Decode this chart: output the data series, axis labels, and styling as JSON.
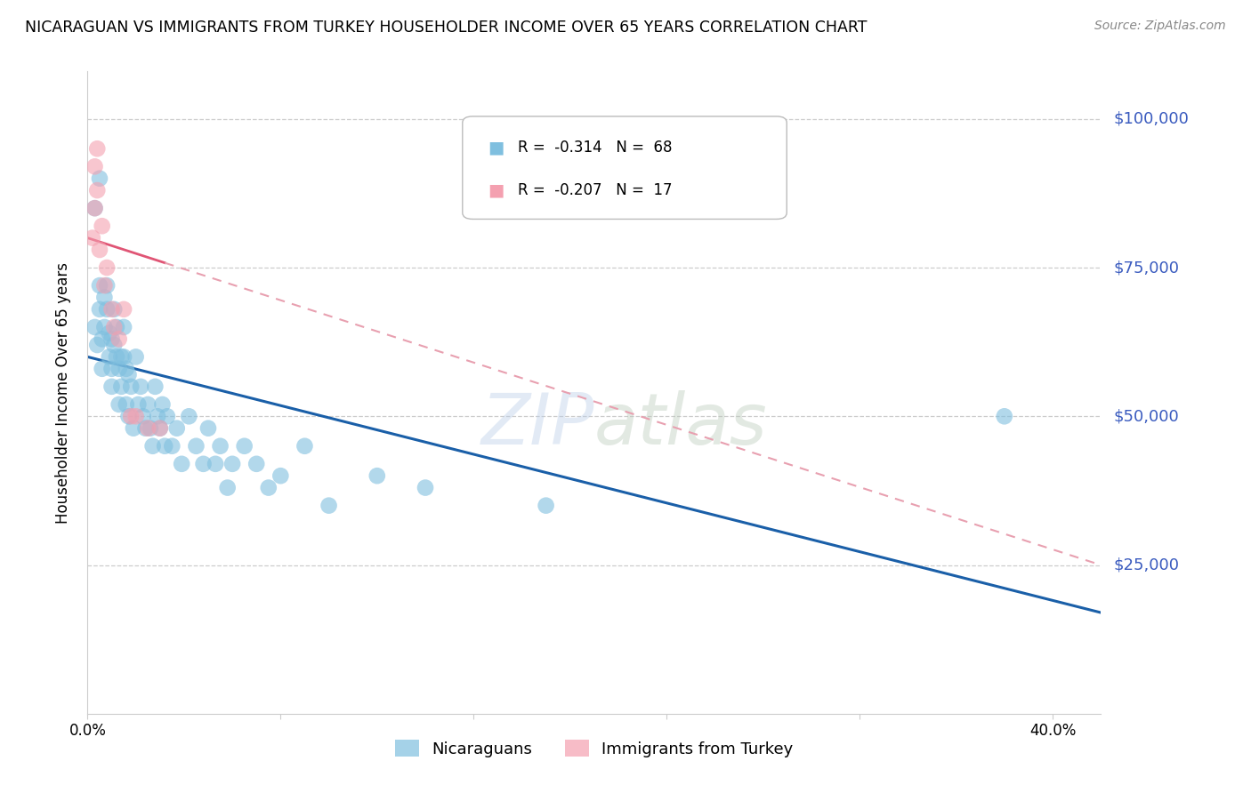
{
  "title": "NICARAGUAN VS IMMIGRANTS FROM TURKEY HOUSEHOLDER INCOME OVER 65 YEARS CORRELATION CHART",
  "source": "Source: ZipAtlas.com",
  "ylabel": "Householder Income Over 65 years",
  "legend_blue_r": "-0.314",
  "legend_blue_n": "68",
  "legend_pink_r": "-0.207",
  "legend_pink_n": "17",
  "y_tick_labels": [
    "$100,000",
    "$75,000",
    "$50,000",
    "$25,000"
  ],
  "y_tick_values": [
    100000,
    75000,
    50000,
    25000
  ],
  "ylim": [
    0,
    108000
  ],
  "xlim": [
    0.0,
    0.42
  ],
  "blue_color": "#7fbfdf",
  "pink_color": "#f4a0b0",
  "blue_line_color": "#1a5fa8",
  "pink_line_color": "#e05575",
  "pink_dash_color": "#e8a0b0",
  "grid_color": "#cccccc",
  "right_label_color": "#3a5bbf",
  "nicaraguans_x": [
    0.003,
    0.004,
    0.005,
    0.005,
    0.006,
    0.006,
    0.007,
    0.007,
    0.008,
    0.008,
    0.009,
    0.009,
    0.01,
    0.01,
    0.01,
    0.011,
    0.011,
    0.012,
    0.012,
    0.013,
    0.013,
    0.014,
    0.014,
    0.015,
    0.015,
    0.016,
    0.016,
    0.017,
    0.017,
    0.018,
    0.019,
    0.02,
    0.021,
    0.022,
    0.023,
    0.024,
    0.025,
    0.026,
    0.027,
    0.028,
    0.029,
    0.03,
    0.031,
    0.032,
    0.033,
    0.035,
    0.037,
    0.039,
    0.042,
    0.045,
    0.048,
    0.05,
    0.053,
    0.055,
    0.058,
    0.06,
    0.065,
    0.07,
    0.075,
    0.08,
    0.09,
    0.1,
    0.12,
    0.14,
    0.19,
    0.38,
    0.003,
    0.005
  ],
  "nicaraguans_y": [
    65000,
    62000,
    68000,
    72000,
    63000,
    58000,
    70000,
    65000,
    68000,
    72000,
    64000,
    60000,
    63000,
    58000,
    55000,
    68000,
    62000,
    60000,
    65000,
    58000,
    52000,
    60000,
    55000,
    65000,
    60000,
    58000,
    52000,
    57000,
    50000,
    55000,
    48000,
    60000,
    52000,
    55000,
    50000,
    48000,
    52000,
    48000,
    45000,
    55000,
    50000,
    48000,
    52000,
    45000,
    50000,
    45000,
    48000,
    42000,
    50000,
    45000,
    42000,
    48000,
    42000,
    45000,
    38000,
    42000,
    45000,
    42000,
    38000,
    40000,
    45000,
    35000,
    40000,
    38000,
    35000,
    50000,
    85000,
    90000
  ],
  "turkey_x": [
    0.002,
    0.003,
    0.003,
    0.004,
    0.004,
    0.005,
    0.006,
    0.007,
    0.008,
    0.01,
    0.011,
    0.013,
    0.015,
    0.018,
    0.02,
    0.025,
    0.03
  ],
  "turkey_y": [
    80000,
    85000,
    92000,
    88000,
    95000,
    78000,
    82000,
    72000,
    75000,
    68000,
    65000,
    63000,
    68000,
    50000,
    50000,
    48000,
    48000
  ],
  "blue_line_x0": 0.0,
  "blue_line_x1": 0.42,
  "blue_line_y0": 60000,
  "blue_line_y1": 17000,
  "pink_line_x0": 0.0,
  "pink_line_x1": 0.42,
  "pink_line_y0": 80000,
  "pink_line_y1": 25000,
  "pink_solid_xend": 0.032
}
